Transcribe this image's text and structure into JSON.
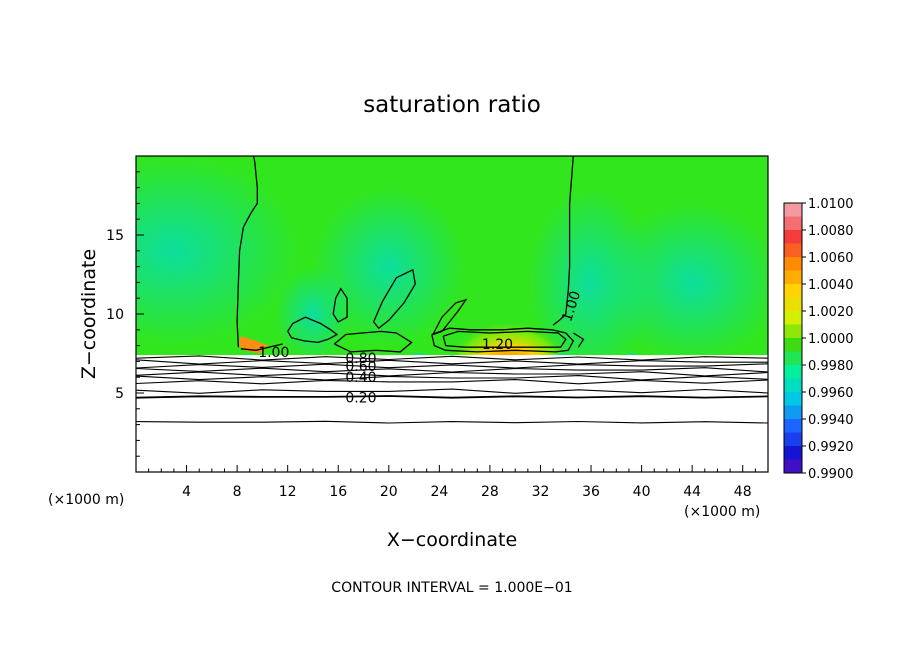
{
  "chart_data": {
    "type": "heatmap",
    "title": "saturation ratio",
    "xlabel": "X−coordinate",
    "ylabel": "Z−coordinate",
    "x_unit_left": "(×1000 m)",
    "x_unit_right": "(×1000 m)",
    "footer": "CONTOUR INTERVAL = 1.000E−01",
    "xlim": [
      0,
      50
    ],
    "ylim": [
      0,
      20
    ],
    "x_ticks": [
      4,
      8,
      12,
      16,
      20,
      24,
      28,
      32,
      36,
      40,
      44,
      48
    ],
    "x_tick_labels": [
      "4",
      "8",
      "12",
      "16",
      "20",
      "24",
      "28",
      "32",
      "36",
      "40",
      "44",
      "48"
    ],
    "y_ticks": [
      5,
      10,
      15
    ],
    "y_tick_labels": [
      "5",
      "10",
      "15"
    ],
    "colorbar": {
      "range": [
        0.99,
        1.01
      ],
      "labels": [
        "1.0100",
        "1.0080",
        "1.0060",
        "1.0040",
        "1.0020",
        "1.0000",
        "0.9980",
        "0.9960",
        "0.9940",
        "0.9920",
        "0.9900"
      ],
      "colors": [
        "#f39aa0",
        "#f43c3c",
        "#ff8c00",
        "#ffd200",
        "#d2f000",
        "#3cdc14",
        "#00f0a0",
        "#00c8e6",
        "#1e64ff",
        "#1414d2",
        "#780ab4"
      ]
    },
    "contour_labels": [
      {
        "text": "1.00",
        "x": 10.9,
        "y": 7.6
      },
      {
        "text": "0.80",
        "x": 17.8,
        "y": 7.2
      },
      {
        "text": "0.60",
        "x": 17.8,
        "y": 6.7
      },
      {
        "text": "0.40",
        "x": 17.8,
        "y": 6.0
      },
      {
        "text": "0.20",
        "x": 17.8,
        "y": 4.7
      },
      {
        "text": "1.20",
        "x": 28.6,
        "y": 8.1
      },
      {
        "text": "1.00",
        "x": 34.4,
        "y": 10.5
      }
    ],
    "contour_interval": 0.1,
    "field_background": "#32e61e",
    "cloud_base_z": 7.4
  }
}
